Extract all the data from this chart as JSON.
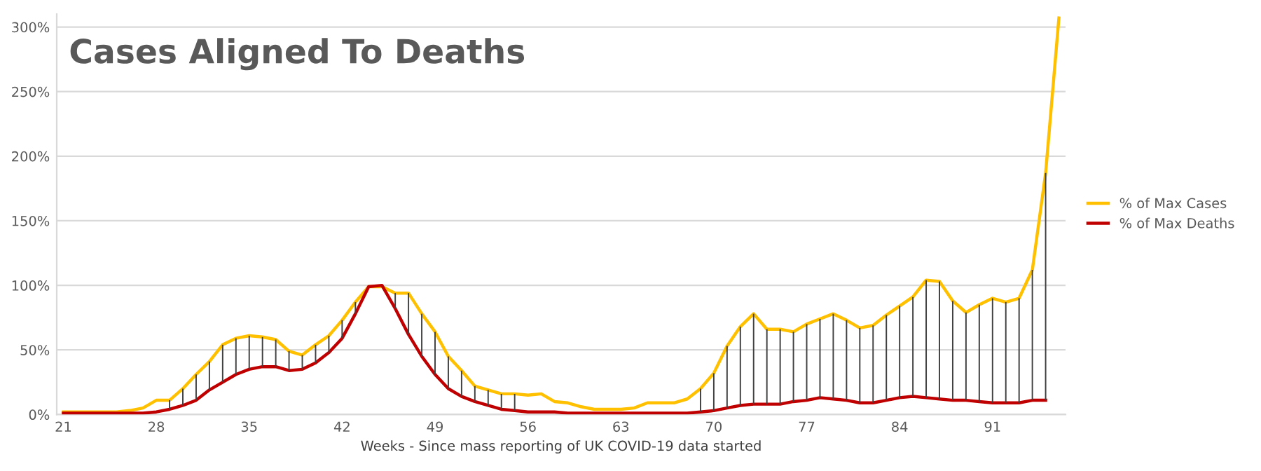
{
  "chart_data": {
    "type": "line",
    "title": "Cases Aligned To Deaths",
    "xlabel": "Weeks - Since mass reporting of UK COVID-19 data started",
    "x": [
      21,
      22,
      23,
      24,
      25,
      26,
      27,
      28,
      29,
      30,
      31,
      32,
      33,
      34,
      35,
      36,
      37,
      38,
      39,
      40,
      41,
      42,
      43,
      44,
      45,
      46,
      47,
      48,
      49,
      50,
      51,
      52,
      53,
      54,
      55,
      56,
      57,
      58,
      59,
      60,
      61,
      62,
      63,
      64,
      65,
      66,
      67,
      68,
      69,
      70,
      71,
      72,
      73,
      74,
      75,
      76,
      77,
      78,
      79,
      80,
      81,
      82,
      83,
      84,
      85,
      86,
      87,
      88,
      89,
      90,
      91,
      92,
      93,
      94,
      95,
      96
    ],
    "series": [
      {
        "name": "% of Max Cases",
        "color": "#ffc000",
        "values": [
          2,
          2,
          2,
          2,
          2,
          3,
          5,
          11,
          11,
          20,
          31,
          41,
          54,
          59,
          61,
          60,
          58,
          49,
          46,
          54,
          61,
          73,
          87,
          99,
          99,
          94,
          94,
          78,
          64,
          45,
          34,
          22,
          19,
          16,
          16,
          15,
          16,
          10,
          9,
          6,
          4,
          4,
          4,
          5,
          9,
          9,
          9,
          12,
          20,
          32,
          53,
          68,
          78,
          66,
          66,
          64,
          70,
          74,
          78,
          73,
          67,
          69,
          77,
          84,
          91,
          104,
          103,
          88,
          79,
          85,
          90,
          87,
          90,
          112,
          187,
          307
        ],
        "errors": [
          null,
          null,
          null,
          null,
          null,
          null,
          null,
          null,
          [
            4,
            11
          ],
          [
            7,
            20
          ],
          [
            11,
            31
          ],
          [
            19,
            41
          ],
          [
            25,
            54
          ],
          [
            31,
            59
          ],
          [
            35,
            61
          ],
          [
            37,
            60
          ],
          [
            37,
            58
          ],
          [
            34,
            49
          ],
          [
            35,
            46
          ],
          [
            40,
            54
          ],
          [
            48,
            61
          ],
          [
            59,
            73
          ],
          [
            78,
            87
          ],
          null,
          null,
          [
            82,
            94
          ],
          [
            62,
            94
          ],
          [
            45,
            78
          ],
          [
            31,
            64
          ],
          [
            20,
            45
          ],
          [
            14,
            34
          ],
          [
            10,
            22
          ],
          [
            7,
            19
          ],
          [
            4,
            16
          ],
          [
            3,
            16
          ],
          null,
          null,
          null,
          null,
          null,
          null,
          null,
          null,
          null,
          null,
          null,
          null,
          null,
          [
            2,
            20
          ],
          [
            3,
            32
          ],
          [
            5,
            53
          ],
          [
            7,
            68
          ],
          [
            8,
            78
          ],
          [
            8,
            66
          ],
          [
            8,
            66
          ],
          [
            10,
            64
          ],
          [
            11,
            70
          ],
          [
            13,
            74
          ],
          [
            12,
            78
          ],
          [
            11,
            73
          ],
          [
            9,
            67
          ],
          [
            9,
            69
          ],
          [
            11,
            77
          ],
          [
            13,
            84
          ],
          [
            14,
            91
          ],
          [
            13,
            104
          ],
          [
            12,
            103
          ],
          [
            11,
            88
          ],
          [
            11,
            79
          ],
          [
            10,
            85
          ],
          [
            9,
            90
          ],
          [
            9,
            87
          ],
          [
            9,
            90
          ],
          [
            11,
            112
          ],
          [
            11,
            187
          ],
          null
        ]
      },
      {
        "name": "% of Max Deaths",
        "color": "#c00000",
        "values": [
          1,
          1,
          1,
          1,
          1,
          1,
          1,
          2,
          4,
          7,
          11,
          19,
          25,
          31,
          35,
          37,
          37,
          34,
          35,
          40,
          48,
          59,
          78,
          99,
          100,
          82,
          62,
          45,
          31,
          20,
          14,
          10,
          7,
          4,
          3,
          2,
          2,
          2,
          1,
          1,
          1,
          1,
          1,
          1,
          1,
          1,
          1,
          1,
          2,
          3,
          5,
          7,
          8,
          8,
          8,
          10,
          11,
          13,
          12,
          11,
          9,
          9,
          11,
          13,
          14,
          13,
          12,
          11,
          11,
          10,
          9,
          9,
          9,
          11,
          11,
          null
        ]
      }
    ],
    "xlim": [
      20.5,
      96.5
    ],
    "xticks": [
      21,
      28,
      35,
      42,
      49,
      56,
      63,
      70,
      77,
      84,
      91
    ],
    "ylim": [
      0,
      310
    ],
    "yticks": [
      {
        "value": 0,
        "label": "0%"
      },
      {
        "value": 50,
        "label": "50%"
      },
      {
        "value": 100,
        "label": "100%"
      },
      {
        "value": 150,
        "label": "150%"
      },
      {
        "value": 200,
        "label": "200%"
      },
      {
        "value": 250,
        "label": "250%"
      },
      {
        "value": 300,
        "label": "300%"
      }
    ],
    "grid": "y",
    "legend": "right",
    "marker": "none",
    "line_style": "solid"
  }
}
